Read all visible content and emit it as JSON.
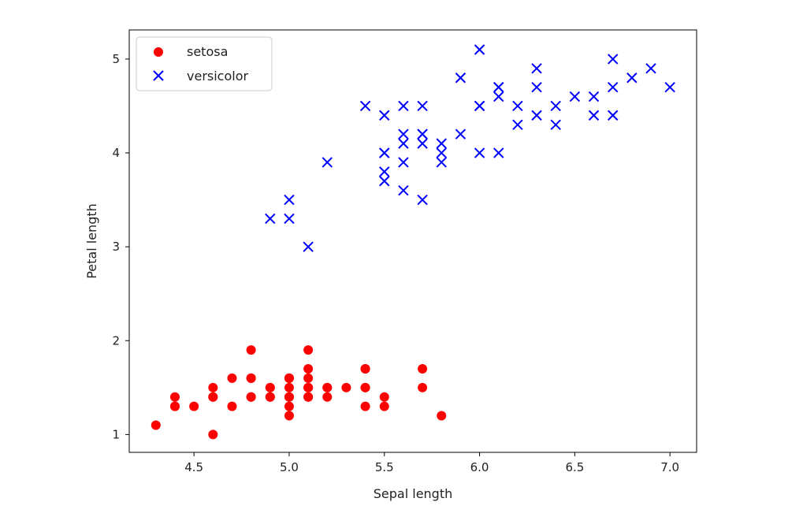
{
  "chart_data": {
    "type": "scatter",
    "xlabel": "Sepal length",
    "ylabel": "Petal length",
    "xlim": [
      4.16,
      7.14
    ],
    "ylim": [
      0.81,
      5.31
    ],
    "xticks": [
      "4.5",
      "5.0",
      "5.5",
      "6.0",
      "6.5",
      "7.0"
    ],
    "yticks": [
      "1",
      "2",
      "3",
      "4",
      "5"
    ],
    "grid": false,
    "legend": "top-left",
    "series": [
      {
        "name": "setosa",
        "marker": "circle",
        "color": "#ff0000",
        "points": [
          [
            5.1,
            1.4
          ],
          [
            4.9,
            1.4
          ],
          [
            4.7,
            1.3
          ],
          [
            4.6,
            1.5
          ],
          [
            5.0,
            1.4
          ],
          [
            5.4,
            1.7
          ],
          [
            4.6,
            1.4
          ],
          [
            5.0,
            1.5
          ],
          [
            4.4,
            1.4
          ],
          [
            4.9,
            1.5
          ],
          [
            5.4,
            1.5
          ],
          [
            4.8,
            1.6
          ],
          [
            4.8,
            1.4
          ],
          [
            4.3,
            1.1
          ],
          [
            5.8,
            1.2
          ],
          [
            5.7,
            1.5
          ],
          [
            5.4,
            1.3
          ],
          [
            5.1,
            1.4
          ],
          [
            5.7,
            1.7
          ],
          [
            5.1,
            1.5
          ],
          [
            5.4,
            1.7
          ],
          [
            5.1,
            1.5
          ],
          [
            4.6,
            1.0
          ],
          [
            5.1,
            1.7
          ],
          [
            4.8,
            1.9
          ],
          [
            5.0,
            1.6
          ],
          [
            5.0,
            1.6
          ],
          [
            5.2,
            1.5
          ],
          [
            5.2,
            1.4
          ],
          [
            4.7,
            1.6
          ],
          [
            4.8,
            1.6
          ],
          [
            5.4,
            1.5
          ],
          [
            5.2,
            1.5
          ],
          [
            5.5,
            1.4
          ],
          [
            4.9,
            1.5
          ],
          [
            5.0,
            1.2
          ],
          [
            5.5,
            1.3
          ],
          [
            4.9,
            1.4
          ],
          [
            4.4,
            1.3
          ],
          [
            5.1,
            1.5
          ],
          [
            5.0,
            1.3
          ],
          [
            4.5,
            1.3
          ],
          [
            4.4,
            1.3
          ],
          [
            5.0,
            1.6
          ],
          [
            5.1,
            1.9
          ],
          [
            4.8,
            1.4
          ],
          [
            5.1,
            1.6
          ],
          [
            4.6,
            1.4
          ],
          [
            5.3,
            1.5
          ],
          [
            5.0,
            1.4
          ]
        ]
      },
      {
        "name": "versicolor",
        "marker": "x",
        "color": "#0000ff",
        "points": [
          [
            7.0,
            4.7
          ],
          [
            6.4,
            4.5
          ],
          [
            6.9,
            4.9
          ],
          [
            5.5,
            4.0
          ],
          [
            6.5,
            4.6
          ],
          [
            5.7,
            4.5
          ],
          [
            6.3,
            4.7
          ],
          [
            4.9,
            3.3
          ],
          [
            6.6,
            4.6
          ],
          [
            5.2,
            3.9
          ],
          [
            5.0,
            3.5
          ],
          [
            5.9,
            4.2
          ],
          [
            6.0,
            4.0
          ],
          [
            6.1,
            4.7
          ],
          [
            5.6,
            3.6
          ],
          [
            6.7,
            4.4
          ],
          [
            5.6,
            4.5
          ],
          [
            5.8,
            4.1
          ],
          [
            6.2,
            4.5
          ],
          [
            5.6,
            3.9
          ],
          [
            5.9,
            4.8
          ],
          [
            6.1,
            4.0
          ],
          [
            6.3,
            4.9
          ],
          [
            6.1,
            4.7
          ],
          [
            6.4,
            4.3
          ],
          [
            6.6,
            4.4
          ],
          [
            6.8,
            4.8
          ],
          [
            6.7,
            5.0
          ],
          [
            6.0,
            4.5
          ],
          [
            5.7,
            3.5
          ],
          [
            5.5,
            3.8
          ],
          [
            5.5,
            3.7
          ],
          [
            5.8,
            3.9
          ],
          [
            6.0,
            5.1
          ],
          [
            5.4,
            4.5
          ],
          [
            6.0,
            4.5
          ],
          [
            6.7,
            4.7
          ],
          [
            6.3,
            4.4
          ],
          [
            5.6,
            4.1
          ],
          [
            5.5,
            4.0
          ],
          [
            5.5,
            4.4
          ],
          [
            6.1,
            4.6
          ],
          [
            5.8,
            4.0
          ],
          [
            5.0,
            3.3
          ],
          [
            5.6,
            4.2
          ],
          [
            5.7,
            4.2
          ],
          [
            5.7,
            4.2
          ],
          [
            6.2,
            4.3
          ],
          [
            5.1,
            3.0
          ],
          [
            5.7,
            4.1
          ]
        ]
      }
    ]
  }
}
